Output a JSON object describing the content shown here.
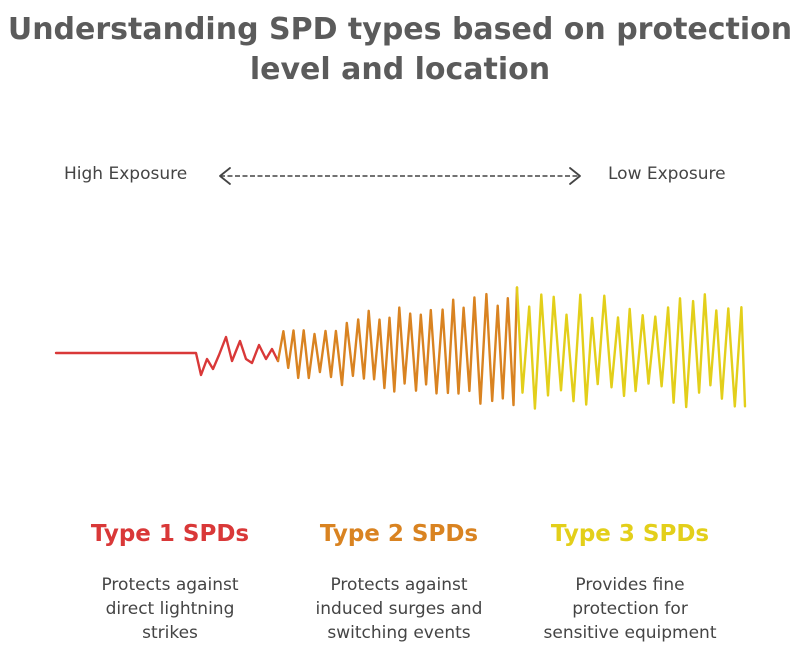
{
  "title": {
    "line1": "Understanding SPD types based on protection",
    "line2": "level and location"
  },
  "exposure_scale": {
    "left_label": "High Exposure",
    "right_label": "Low Exposure"
  },
  "colors": {
    "type1": "#d93838",
    "type2": "#d98321",
    "type3": "#e3cf1a",
    "text": "#444444",
    "title": "#5b5b5b"
  },
  "types": [
    {
      "title": "Type 1 SPDs",
      "desc": [
        "Protects against",
        "direct lightning",
        "strikes"
      ]
    },
    {
      "title": "Type 2 SPDs",
      "desc": [
        "Protects against",
        "induced surges and",
        "switching events"
      ]
    },
    {
      "title": "Type 3 SPDs",
      "desc": [
        "Provides fine",
        "protection for",
        "sensitive equipment"
      ]
    }
  ]
}
